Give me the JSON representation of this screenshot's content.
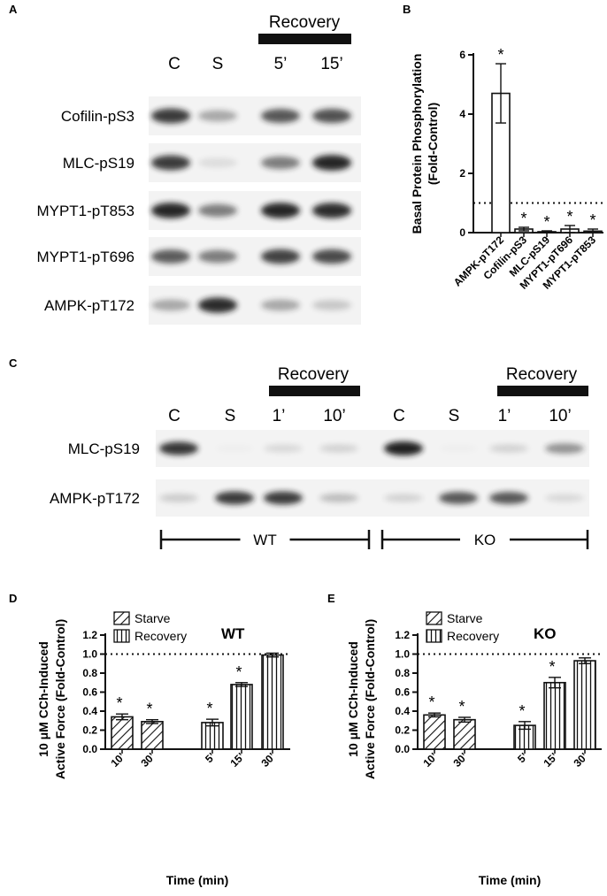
{
  "panels": {
    "A": "A",
    "B": "B",
    "C": "C",
    "D": "D",
    "E": "E"
  },
  "panel_a": {
    "recovery_label": "Recovery",
    "lanes": [
      "C",
      "S",
      "5’",
      "15’"
    ],
    "rows": [
      "Cofilin-pS3",
      "MLC-pS19",
      "MYPT1-pT853",
      "MYPT1-pT696",
      "AMPK-pT172"
    ],
    "band_intensity": [
      [
        0.85,
        0.35,
        0.72,
        0.75
      ],
      [
        0.85,
        0.1,
        0.55,
        0.95
      ],
      [
        0.95,
        0.55,
        0.95,
        0.92
      ],
      [
        0.7,
        0.55,
        0.82,
        0.78
      ],
      [
        0.35,
        0.92,
        0.35,
        0.2
      ]
    ]
  },
  "panel_c": {
    "recovery_label": "Recovery",
    "lanes": [
      "C",
      "S",
      "1’",
      "10’",
      "C",
      "S",
      "1’",
      "10’"
    ],
    "rows": [
      "MLC-pS19",
      "AMPK-pT172"
    ],
    "band_intensity": [
      [
        0.88,
        0.02,
        0.12,
        0.15,
        0.98,
        0.02,
        0.15,
        0.45
      ],
      [
        0.18,
        0.85,
        0.85,
        0.25,
        0.15,
        0.72,
        0.72,
        0.12
      ]
    ],
    "groups": [
      "WT",
      "KO"
    ]
  },
  "colors": {
    "ink": "#111111",
    "band": "#1a1a1a",
    "blot_bg": "#f3f3f3"
  },
  "chart_data": [
    {
      "type": "bar",
      "panel": "B",
      "ylabel": "Basal Protein Phosphorylation (Fold-Control)",
      "categories": [
        "AMPK-pT172",
        "Cofilin-pS3",
        "MLC-pS19",
        "MYPT1-pT696",
        "MYPT1-pT853"
      ],
      "values": [
        4.7,
        0.12,
        0.03,
        0.12,
        0.05
      ],
      "errors": [
        1.0,
        0.06,
        0.03,
        0.12,
        0.07
      ],
      "significance": [
        "*",
        "*",
        "*",
        "*",
        "*"
      ],
      "ylim": [
        0,
        6
      ],
      "yticks": [
        "0",
        "2",
        "4",
        "6"
      ],
      "reference_line": 1.0
    },
    {
      "type": "bar",
      "panel": "D",
      "title": "WT",
      "ylabel": "10 μM CCh-Induced Active Force (Fold-Control)",
      "xlabel": "Time (min)",
      "categories": [
        "10’",
        "30’",
        "5’",
        "15’",
        "30’"
      ],
      "series_type": [
        "Starve",
        "Starve",
        "Recovery",
        "Recovery",
        "Recovery"
      ],
      "values": [
        0.34,
        0.29,
        0.28,
        0.68,
        0.99
      ],
      "errors": [
        0.03,
        0.02,
        0.035,
        0.02,
        0.02
      ],
      "significance": [
        "*",
        "*",
        "*",
        "*",
        ""
      ],
      "legend": [
        "Starve",
        "Recovery"
      ],
      "ylim": [
        0,
        1.2
      ],
      "yticks": [
        "0.0",
        "0.2",
        "0.4",
        "0.6",
        "0.8",
        "1.0",
        "1.2"
      ],
      "reference_line": 1.0
    },
    {
      "type": "bar",
      "panel": "E",
      "title": "KO",
      "ylabel": "10 μM CCh-Induced Active Force (Fold-Control)",
      "xlabel": "Time (min)",
      "categories": [
        "10’",
        "30’",
        "5’",
        "15’",
        "30’"
      ],
      "series_type": [
        "Starve",
        "Starve",
        "Recovery",
        "Recovery",
        "Recovery"
      ],
      "values": [
        0.36,
        0.31,
        0.25,
        0.7,
        0.93
      ],
      "errors": [
        0.02,
        0.025,
        0.04,
        0.055,
        0.03
      ],
      "significance": [
        "*",
        "*",
        "*",
        "*",
        ""
      ],
      "legend": [
        "Starve",
        "Recovery"
      ],
      "ylim": [
        0,
        1.2
      ],
      "yticks": [
        "0.0",
        "0.2",
        "0.4",
        "0.6",
        "0.8",
        "1.0",
        "1.2"
      ],
      "reference_line": 1.0
    }
  ]
}
